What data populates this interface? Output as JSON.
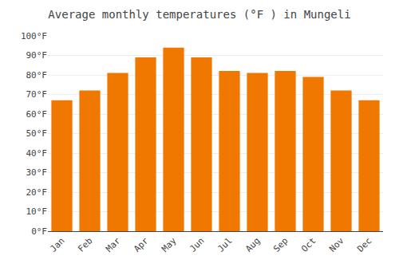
{
  "chart_data": {
    "type": "bar",
    "title": "Average monthly temperatures (°F ) in Mungeli",
    "categories": [
      "Jan",
      "Feb",
      "Mar",
      "Apr",
      "May",
      "Jun",
      "Jul",
      "Aug",
      "Sep",
      "Oct",
      "Nov",
      "Dec"
    ],
    "values": [
      67,
      72,
      81,
      89,
      94,
      89,
      82,
      81,
      82,
      79,
      72,
      67
    ],
    "color": "#F07800",
    "ylim": [
      0,
      100
    ],
    "yticks": [
      {
        "value": 0,
        "label": "0°F"
      },
      {
        "value": 10,
        "label": "10°F"
      },
      {
        "value": 20,
        "label": "20°F"
      },
      {
        "value": 30,
        "label": "30°F"
      },
      {
        "value": 40,
        "label": "40°F"
      },
      {
        "value": 50,
        "label": "50°F"
      },
      {
        "value": 60,
        "label": "60°F"
      },
      {
        "value": 70,
        "label": "70°F"
      },
      {
        "value": 80,
        "label": "80°F"
      },
      {
        "value": 90,
        "label": "90°F"
      },
      {
        "value": 100,
        "label": "100°F"
      }
    ],
    "grid": true
  }
}
